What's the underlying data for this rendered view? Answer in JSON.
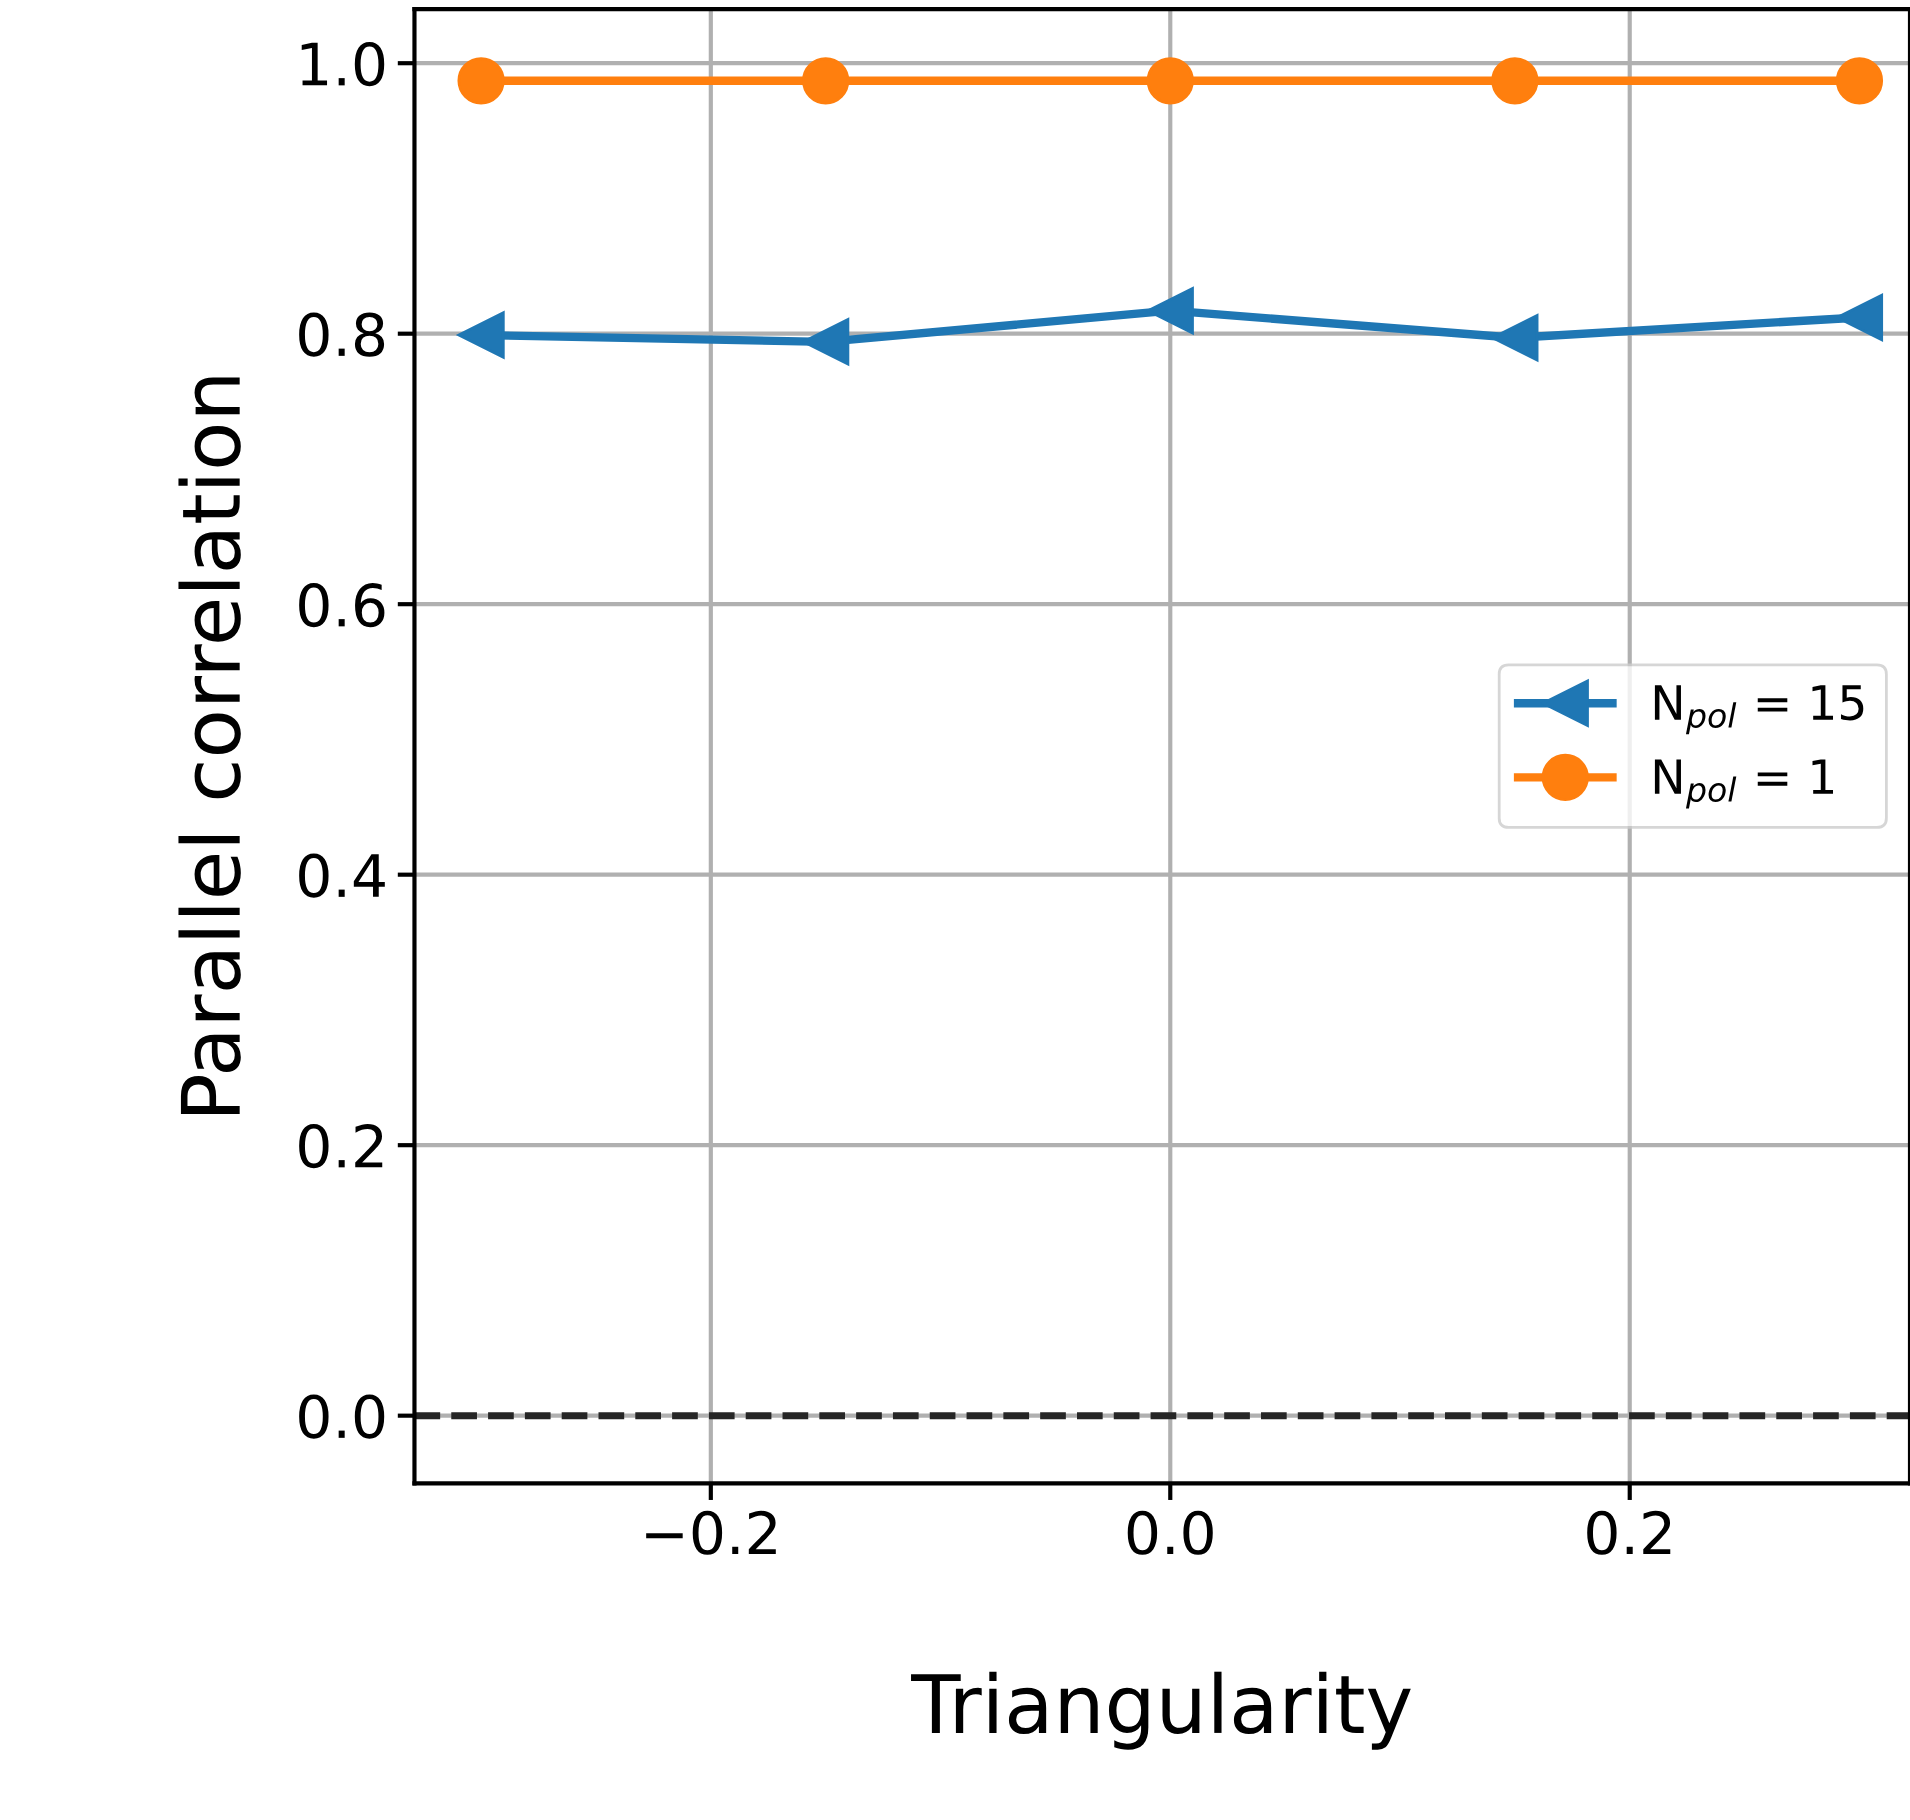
{
  "chart_data": {
    "type": "line",
    "xlabel": "Triangularity",
    "ylabel": "Parallel correlation",
    "x": [
      -0.3,
      -0.15,
      0.0,
      0.15,
      0.3
    ],
    "series": [
      {
        "name": "N$_{pol}$ = 15",
        "color": "#1f77b4",
        "marker": "triangle",
        "values": [
          0.799,
          0.794,
          0.817,
          0.797,
          0.812
        ]
      },
      {
        "name": "N$_{pol}$ = 1",
        "color": "#ff7f0e",
        "marker": "circle",
        "values": [
          0.987,
          0.987,
          0.987,
          0.987,
          0.987
        ]
      }
    ],
    "xlim": [
      -0.329,
      0.322
    ],
    "ylim": [
      -0.05,
      1.04
    ],
    "xticks": [
      {
        "value": -0.2,
        "label": "−0.2"
      },
      {
        "value": 0.0,
        "label": "0.0"
      },
      {
        "value": 0.2,
        "label": "0.2"
      }
    ],
    "yticks": [
      {
        "value": 0.0,
        "label": "0.0"
      },
      {
        "value": 0.2,
        "label": "0.2"
      },
      {
        "value": 0.4,
        "label": "0.4"
      },
      {
        "value": 0.6,
        "label": "0.6"
      },
      {
        "value": 0.8,
        "label": "0.8"
      },
      {
        "value": 1.0,
        "label": "1.0"
      }
    ],
    "ref_lines": [
      {
        "axis": "y",
        "value": 0,
        "color": "#262626",
        "line_style": "dashed"
      }
    ],
    "grid": true,
    "legend": "center right",
    "line_style": "solid"
  }
}
